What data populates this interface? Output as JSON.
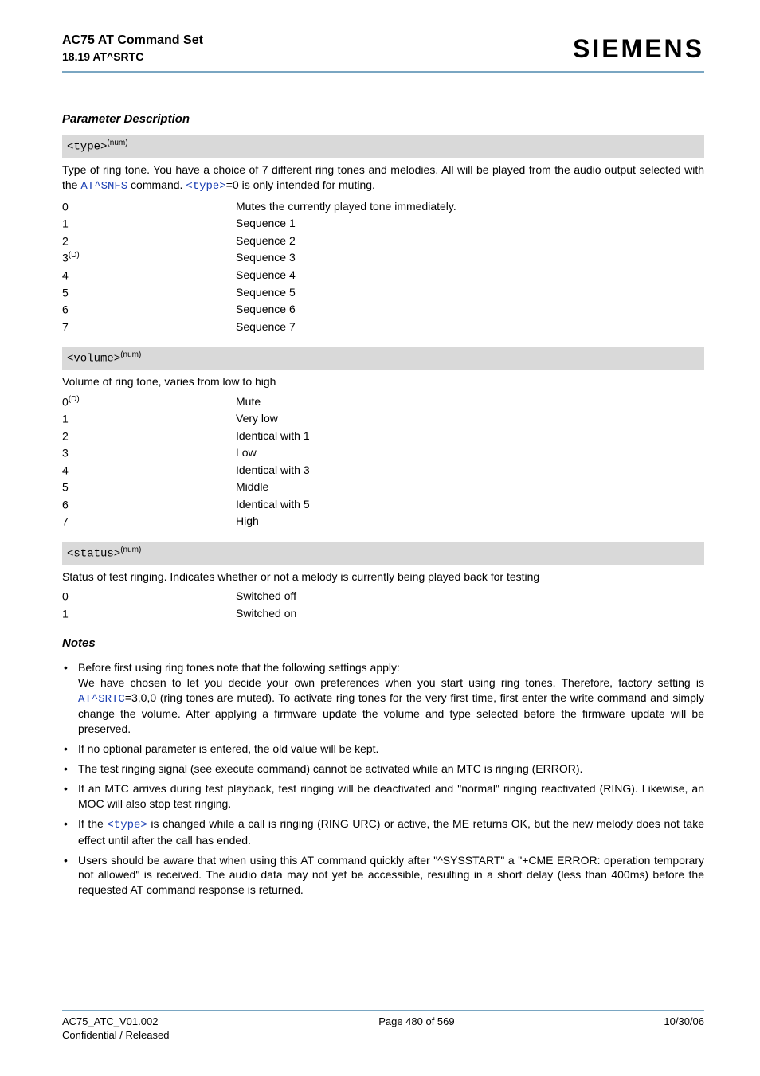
{
  "header": {
    "title": "AC75 AT Command Set",
    "subtitle": "18.19 AT^SRTC",
    "brand": "SIEMENS"
  },
  "colors": {
    "rule": "#7aa6c2",
    "param_bg": "#d9d9d9",
    "link": "#1a3fb3",
    "text": "#000000",
    "background": "#ffffff"
  },
  "section": {
    "title": "Parameter Description"
  },
  "params": {
    "type": {
      "name": "<type>",
      "sup": "(num)",
      "desc_pre": "Type of ring tone. You have a choice of 7 different ring tones and melodies. All will be played from the audio output selected with the ",
      "cmd": "AT^SNFS",
      "desc_mid": " command. ",
      "param_ref": "<type>",
      "desc_post": "=0 is only intended for muting.",
      "rows": [
        {
          "k": "0",
          "sup": "",
          "v": "Mutes the currently played tone immediately."
        },
        {
          "k": "1",
          "sup": "",
          "v": "Sequence 1"
        },
        {
          "k": "2",
          "sup": "",
          "v": "Sequence 2"
        },
        {
          "k": "3",
          "sup": "(D)",
          "v": "Sequence 3"
        },
        {
          "k": "4",
          "sup": "",
          "v": "Sequence 4"
        },
        {
          "k": "5",
          "sup": "",
          "v": "Sequence 5"
        },
        {
          "k": "6",
          "sup": "",
          "v": "Sequence 6"
        },
        {
          "k": "7",
          "sup": "",
          "v": "Sequence 7"
        }
      ]
    },
    "volume": {
      "name": "<volume>",
      "sup": "(num)",
      "desc": "Volume of ring tone, varies from low to high",
      "rows": [
        {
          "k": "0",
          "sup": "(D)",
          "v": "Mute"
        },
        {
          "k": "1",
          "sup": "",
          "v": "Very low"
        },
        {
          "k": "2",
          "sup": "",
          "v": "Identical with 1"
        },
        {
          "k": "3",
          "sup": "",
          "v": "Low"
        },
        {
          "k": "4",
          "sup": "",
          "v": "Identical with 3"
        },
        {
          "k": "5",
          "sup": "",
          "v": "Middle"
        },
        {
          "k": "6",
          "sup": "",
          "v": "Identical with 5"
        },
        {
          "k": "7",
          "sup": "",
          "v": "High"
        }
      ]
    },
    "status": {
      "name": "<status>",
      "sup": "(num)",
      "desc": "Status of test ringing. Indicates whether or not a melody is currently being played back for testing",
      "rows": [
        {
          "k": "0",
          "sup": "",
          "v": "Switched off"
        },
        {
          "k": "1",
          "sup": "",
          "v": "Switched on"
        }
      ]
    }
  },
  "notes": {
    "title": "Notes",
    "items": {
      "n1": {
        "l1": "Before first using ring tones note that the following settings apply:",
        "l2a": "We have chosen to let you decide your own preferences when you start using ring tones. Therefore, factory setting is ",
        "cmd": "AT^SRTC",
        "l2b": "=3,0,0 (ring tones are muted). To activate ring tones for the very first time, first enter the write command and simply change the volume. After applying a firmware update the volume and type selected before the firmware update will be preserved."
      },
      "n2": "If no optional parameter is entered, the old value will be kept.",
      "n3": "The test ringing signal (see execute command) cannot be activated while an MTC is ringing (ERROR).",
      "n4": "If an MTC arrives during test playback, test ringing will be deactivated and \"normal\" ringing reactivated (RING). Likewise, an MOC will also stop test ringing.",
      "n5a": "If the ",
      "n5ref": "<type>",
      "n5b": " is changed while a call is ringing (RING URC) or active, the ME returns OK, but the new melody does not take effect until after the call has ended.",
      "n6": "Users should be aware that when using this AT command quickly after \"^SYSSTART\" a \"+CME ERROR: operation temporary not allowed\" is received. The audio data may not yet be accessible, resulting in a short delay (less than 400ms) before the requested AT command response is returned."
    }
  },
  "footer": {
    "left1": "AC75_ATC_V01.002",
    "left2": "Confidential / Released",
    "center": "Page 480 of 569",
    "right": "10/30/06"
  }
}
